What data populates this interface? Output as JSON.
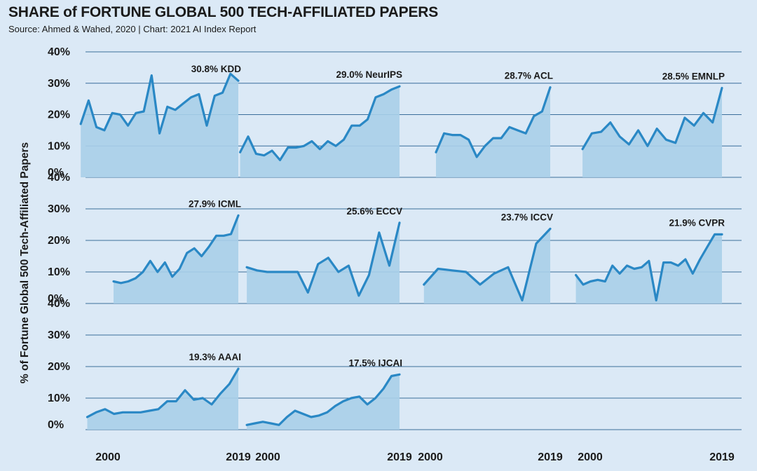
{
  "title": "SHARE of FORTUNE GLOBAL 500 TECH-AFFILIATED PAPERS",
  "subtitle": "Source: Ahmed & Wahed, 2020 | Chart: 2021 AI Index Report",
  "colors": {
    "line": "#2a88c5",
    "fill": "#a9cfe9",
    "background": "#dbe9f6",
    "grid": "#3b6e9b"
  },
  "chart_data": {
    "type": "area",
    "title": "SHARE of FORTUNE GLOBAL 500 TECH-AFFILIATED PAPERS",
    "ylabel": "% of Fortune Global 500 Tech-Affiliated Papers",
    "xlabel": "",
    "ylim": [
      0,
      40
    ],
    "yticks": [
      "40%",
      "30%",
      "20%",
      "10%",
      "0%"
    ],
    "xticks": [
      "2000",
      "2019"
    ],
    "panels": [
      {
        "name": "KDD",
        "label": "30.8% KDD",
        "start": 1995,
        "end": 2019,
        "values": [
          17,
          24.5,
          16,
          15,
          20.5,
          20,
          16.5,
          20.5,
          21,
          32.5,
          14,
          22.5,
          21.5,
          23.5,
          25.5,
          26.5,
          16.5,
          26,
          27,
          33,
          30.8
        ]
      },
      {
        "name": "NeurIPS",
        "label": "29.0% NeurIPS",
        "start": 1995,
        "end": 2019,
        "values": [
          8,
          13,
          7.5,
          7,
          8.5,
          5.5,
          9.5,
          9.5,
          10,
          11.5,
          9,
          11.5,
          10,
          12,
          16.5,
          16.5,
          18.5,
          25.5,
          26.5,
          28,
          29
        ]
      },
      {
        "name": "ACL",
        "label": "28.7% ACL",
        "start": 2000,
        "end": 2019,
        "values": [
          8,
          14,
          13.5,
          13.5,
          12,
          6.5,
          10,
          12.5,
          12.5,
          16,
          15,
          14,
          19.5,
          21,
          28.7
        ]
      },
      {
        "name": "EMNLP",
        "label": "28.5% EMNLP",
        "start": 1998,
        "end": 2019,
        "values": [
          9,
          14,
          14.5,
          17.5,
          13,
          10.5,
          15,
          10,
          15.5,
          12,
          11,
          19,
          16.5,
          20.5,
          17.5,
          28.5
        ]
      },
      {
        "name": "ICML",
        "label": "27.9% ICML",
        "start": 2000,
        "end": 2019,
        "values": [
          7,
          6.5,
          7,
          8,
          10,
          13.5,
          10,
          13,
          8.5,
          11,
          16,
          17.5,
          15,
          18,
          21.5,
          21.5,
          22,
          27.9
        ]
      },
      {
        "name": "ECCV",
        "label": "25.6% ECCV",
        "start": 1996,
        "end": 2019,
        "values": [
          11.5,
          10.5,
          10,
          10,
          10,
          10,
          3.5,
          12.5,
          14.5,
          10,
          12,
          2.5,
          9,
          22.5,
          12,
          25.6
        ]
      },
      {
        "name": "ICCV",
        "label": "23.7% ICCV",
        "start": 1998,
        "end": 2019,
        "values": [
          6,
          11,
          10.5,
          10,
          6,
          9.5,
          11.5,
          1,
          19,
          23.7
        ]
      },
      {
        "name": "CVPR",
        "label": "21.9% CVPR",
        "start": 1997,
        "end": 2019,
        "values": [
          9,
          6,
          7,
          7.5,
          7,
          12,
          9.5,
          12,
          11,
          11.5,
          13.5,
          1,
          13,
          13,
          12,
          14,
          9.5,
          14,
          18,
          21.9,
          21.9
        ]
      },
      {
        "name": "AAAI",
        "label": "19.3% AAAI",
        "start": 1996,
        "end": 2019,
        "values": [
          4,
          5.5,
          6.5,
          5,
          5.5,
          5.5,
          5.5,
          6,
          6.5,
          9,
          9,
          12.5,
          9.5,
          10,
          8,
          11.5,
          14.5,
          19.3
        ]
      },
      {
        "name": "IJCAI",
        "label": "17.5% IJCAI",
        "start": 1996,
        "end": 2019,
        "values": [
          1.5,
          2,
          2.5,
          2,
          1.5,
          4,
          6,
          5,
          4,
          4.5,
          5.5,
          7.5,
          9,
          10,
          10.5,
          8,
          10,
          13,
          17,
          17.5
        ]
      }
    ]
  }
}
